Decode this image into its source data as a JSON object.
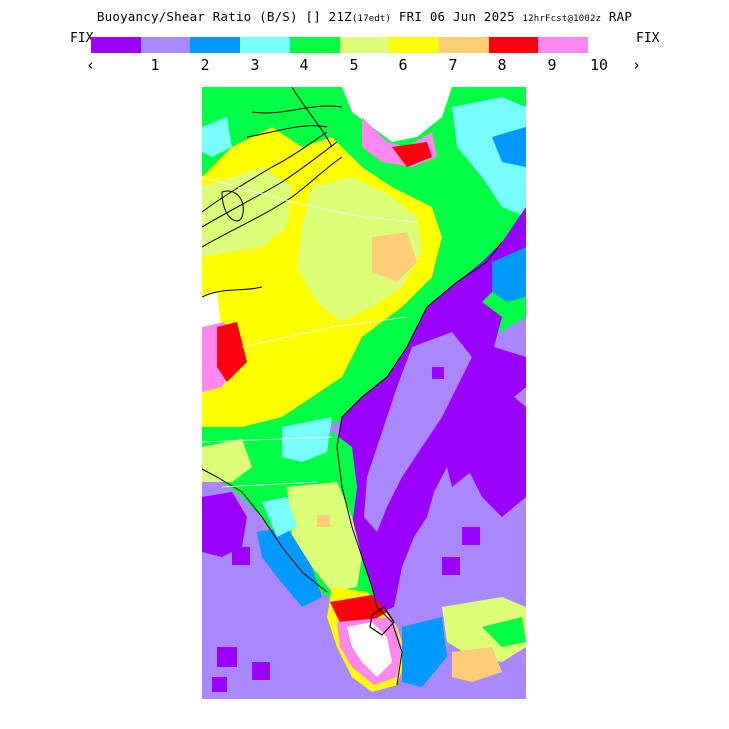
{
  "header": {
    "title_main": "Buoyancy/Shear Ratio (B/S) [] 21Z",
    "title_small_1": "(17edt)",
    "title_mid": " FRI 06 Jun 2025 ",
    "title_small_2": "12hrFcst@1002z",
    "title_end": " RAP"
  },
  "nav": {
    "fix_left": "FIX",
    "fix_right": "FIX",
    "prev": "‹",
    "next": "›"
  },
  "legend": {
    "colors": [
      "#9900ff",
      "#aa88ff",
      "#0099ff",
      "#77ffff",
      "#00ff44",
      "#ddff77",
      "#ffff00",
      "#ffcc77",
      "#ff0011",
      "#ff88ee"
    ],
    "ticks": [
      "1",
      "2",
      "3",
      "4",
      "5",
      "6",
      "7",
      "8",
      "9",
      "10"
    ]
  }
}
